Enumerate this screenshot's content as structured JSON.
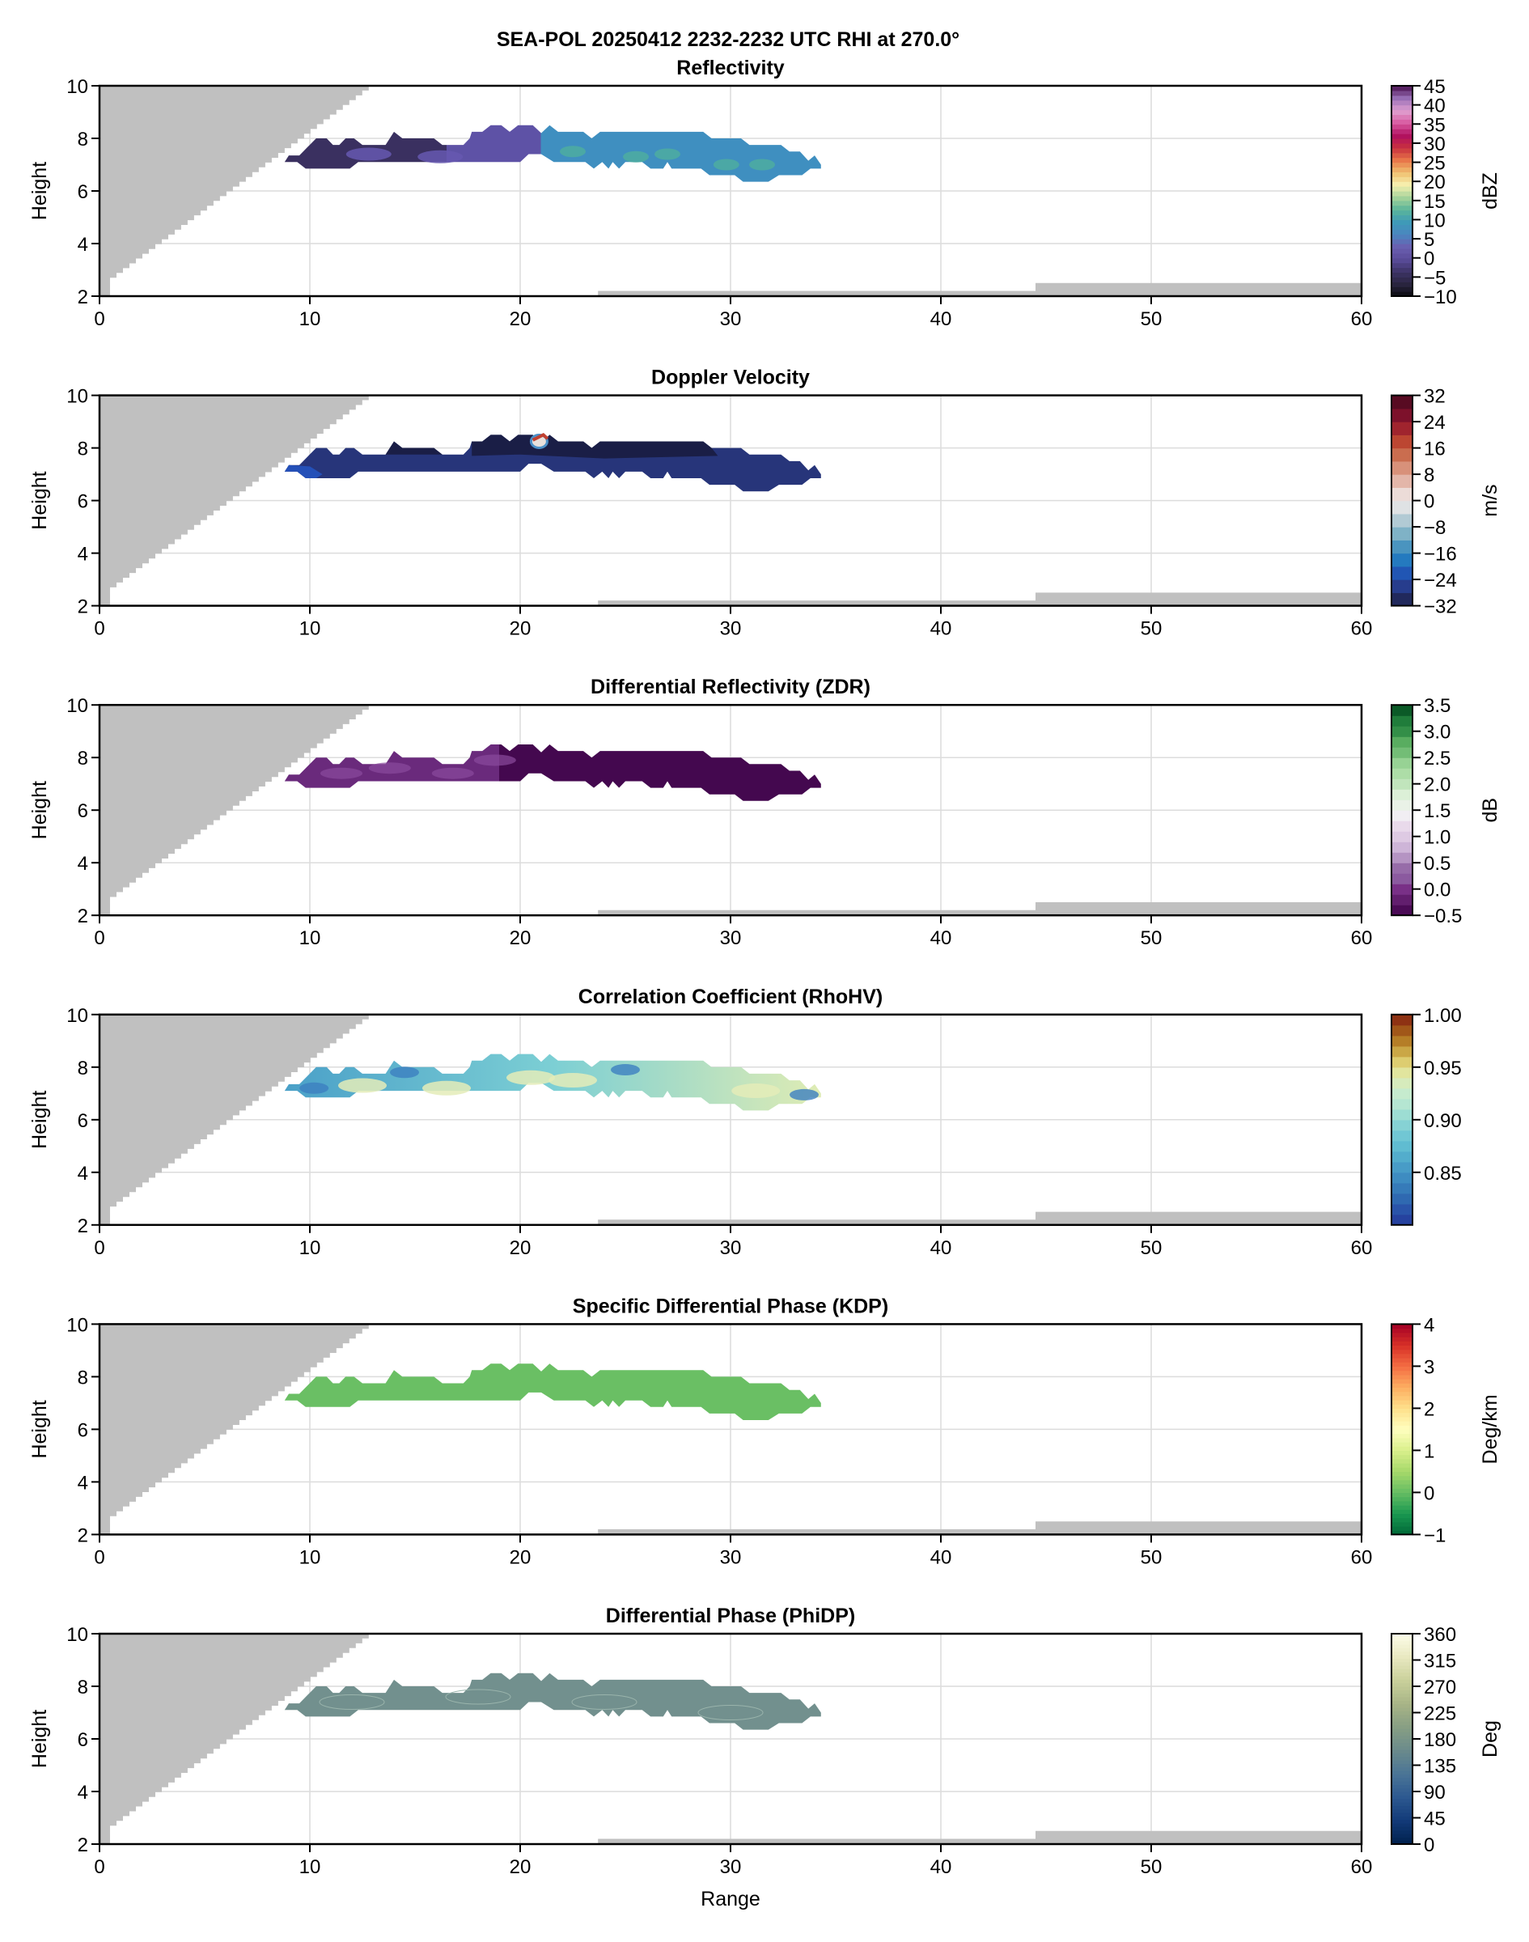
{
  "figure": {
    "suptitle": "SEA-POL 20250412 2232-2232 UTC RHI at 270.0°",
    "xlabel": "Range",
    "ylabel": "Height"
  },
  "chart_data": [
    {
      "type": "heatmap",
      "title": "Reflectivity",
      "xlabel": "",
      "ylabel": "Height",
      "xlim": [
        0,
        60
      ],
      "ylim": [
        2,
        10
      ],
      "xticks": [
        "0",
        "10",
        "20",
        "30",
        "40",
        "50",
        "60"
      ],
      "yticks": [
        "2",
        "4",
        "6",
        "8",
        "10"
      ],
      "grid": true,
      "colorbar": {
        "label": "dBZ",
        "range": [
          -10,
          45
        ],
        "ticks": [
          "45",
          "40",
          "35",
          "30",
          "25",
          "20",
          "15",
          "10",
          "5",
          "0",
          "−5",
          "−10"
        ],
        "tick_values": [
          45,
          40,
          35,
          30,
          25,
          20,
          15,
          10,
          5,
          0,
          -5,
          -10
        ],
        "colormap": [
          "#0b0b10",
          "#2a2540",
          "#3d3466",
          "#5a4c9a",
          "#6a5fb0",
          "#4a86c0",
          "#3f9ab8",
          "#5ab59a",
          "#a6d39a",
          "#f7f1b0",
          "#f0c070",
          "#e8784a",
          "#c8303e",
          "#b01060",
          "#d85aa0",
          "#e0a0d0",
          "#9a70b8",
          "#4a1050"
        ],
        "bands": 44
      },
      "field_description": "Values range roughly -8 to 10 dBZ: near -5 (dark purple) from 9–16 km, ~0–3 dBZ (violet) 16–21 km, ~5–10 dBZ (blue-teal) 21–34 km",
      "field_colors": [
        {
          "range": [
            8.8,
            16.5
          ],
          "color": "#3a3060"
        },
        {
          "range": [
            16.5,
            21.0
          ],
          "color": "#5e52a6"
        },
        {
          "range": [
            21.0,
            34.3
          ],
          "color": "#3f8fc0"
        }
      ]
    },
    {
      "type": "heatmap",
      "title": "Doppler Velocity",
      "xlabel": "",
      "ylabel": "Height",
      "xlim": [
        0,
        60
      ],
      "ylim": [
        2,
        10
      ],
      "xticks": [
        "0",
        "10",
        "20",
        "30",
        "40",
        "50",
        "60"
      ],
      "yticks": [
        "2",
        "4",
        "6",
        "8",
        "10"
      ],
      "grid": true,
      "colorbar": {
        "label": "m/s",
        "range": [
          -32,
          32
        ],
        "ticks": [
          "32",
          "24",
          "16",
          "8",
          "0",
          "−8",
          "−16",
          "−24",
          "−32"
        ],
        "tick_values": [
          32,
          24,
          16,
          8,
          0,
          -8,
          -16,
          -24,
          -32
        ],
        "colormap": [
          "#1a1d45",
          "#293677",
          "#2448ae",
          "#1a72c0",
          "#3e8dbd",
          "#76aec4",
          "#adc8d2",
          "#dfe2e4",
          "#ecdcd8",
          "#e2b2a4",
          "#d68b72",
          "#c76445",
          "#b73a2a",
          "#941830",
          "#6e0d28",
          "#440a1c"
        ],
        "bands": 16
      },
      "field_description": "Mostly -24 to -32 m/s: lower layer ~-26 m/s (#27357a), top layer above ~7.7 km ~-30 m/s (#1a1e46); folded/aliased patch near 21 km, 8.2 km shows positive values",
      "field_colors": [
        {
          "layer": "lower",
          "color": "#27357a"
        },
        {
          "layer": "upper",
          "color": "#1a1e46"
        },
        {
          "layer": "left-edge",
          "color": "#2450b8"
        }
      ]
    },
    {
      "type": "heatmap",
      "title": "Differential Reflectivity (ZDR)",
      "xlabel": "",
      "ylabel": "Height",
      "xlim": [
        0,
        60
      ],
      "ylim": [
        2,
        10
      ],
      "xticks": [
        "0",
        "10",
        "20",
        "30",
        "40",
        "50",
        "60"
      ],
      "yticks": [
        "2",
        "4",
        "6",
        "8",
        "10"
      ],
      "grid": true,
      "colorbar": {
        "label": "dB",
        "range": [
          -0.5,
          3.5
        ],
        "ticks": [
          "3.5",
          "3.0",
          "2.5",
          "2.0",
          "1.5",
          "1.0",
          "0.5",
          "0.0",
          "−0.5"
        ],
        "tick_values": [
          3.5,
          3.0,
          2.5,
          2.0,
          1.5,
          1.0,
          0.5,
          0.0,
          -0.5
        ],
        "colormap": [
          "#40004b",
          "#5a1a66",
          "#762a83",
          "#8c5ba0",
          "#9970ab",
          "#c2a5cf",
          "#d9c4e0",
          "#e7d4e8",
          "#f2eef4",
          "#e8f2e6",
          "#d9f0d3",
          "#b3dfae",
          "#a6dba0",
          "#78c07a",
          "#5aae61",
          "#2d8a44",
          "#1b7837",
          "#00441b"
        ],
        "bands": 20
      },
      "field_description": "Mostly -0.5 to 0.3 dB (dark purple), lighter purple pockets up to ~0.5 dB at 9–19 km",
      "field_colors": [
        {
          "range": [
            8.8,
            19.0
          ],
          "color": "#6a2a7c"
        },
        {
          "range": [
            19.0,
            34.3
          ],
          "color": "#44084f"
        }
      ]
    },
    {
      "type": "heatmap",
      "title": "Correlation Coefficient (RhoHV)",
      "xlabel": "",
      "ylabel": "Height",
      "xlim": [
        0,
        60
      ],
      "ylim": [
        2,
        10
      ],
      "xticks": [
        "0",
        "10",
        "20",
        "30",
        "40",
        "50",
        "60"
      ],
      "yticks": [
        "2",
        "4",
        "6",
        "8",
        "10"
      ],
      "grid": true,
      "colorbar": {
        "label": "",
        "range": [
          0.8,
          1.0
        ],
        "ticks": [
          "1.00",
          "0.95",
          "0.90",
          "0.85"
        ],
        "tick_values": [
          1.0,
          0.95,
          0.9,
          0.85
        ],
        "colormap": [
          "#24399a",
          "#2a52a8",
          "#3170b4",
          "#3c88c0",
          "#4aa0c8",
          "#5ab8d0",
          "#72c8d4",
          "#90d8d4",
          "#b4e6d2",
          "#cceccc",
          "#e2eaa8",
          "#dcc866",
          "#bc8c2c",
          "#a05418",
          "#842010"
        ],
        "bands": 20
      },
      "field_description": "Values ~0.85–0.96: mostly 0.88–0.92 (light blue), yellowish-cream ~0.95 near 12 km and 20–23 km",
      "field_colors": [
        {
          "value": 0.88,
          "color": "#4aa0c8"
        },
        {
          "value": 0.92,
          "color": "#7ccfd4"
        },
        {
          "value": 0.95,
          "color": "#dfecb4"
        }
      ]
    },
    {
      "type": "heatmap",
      "title": "Specific Differential Phase (KDP)",
      "xlabel": "",
      "ylabel": "Height",
      "xlim": [
        0,
        60
      ],
      "ylim": [
        2,
        10
      ],
      "xticks": [
        "0",
        "10",
        "20",
        "30",
        "40",
        "50",
        "60"
      ],
      "yticks": [
        "2",
        "4",
        "6",
        "8",
        "10"
      ],
      "grid": true,
      "colorbar": {
        "label": "Deg/km",
        "range": [
          -1,
          4
        ],
        "ticks": [
          "4",
          "3",
          "2",
          "1",
          "0",
          "−1"
        ],
        "tick_values": [
          4,
          3,
          2,
          1,
          0,
          -1
        ],
        "colormap": [
          "#006837",
          "#1a9850",
          "#66bd63",
          "#a6d96a",
          "#d9ef8b",
          "#ffffbf",
          "#fee08b",
          "#fdae61",
          "#f46d43",
          "#d73027",
          "#a50026"
        ],
        "bands": 50
      },
      "field_description": "Uniform ~0 Deg/km (medium green)",
      "field_colors": [
        {
          "value": 0.0,
          "color": "#6abf64"
        }
      ]
    },
    {
      "type": "heatmap",
      "title": "Differential Phase (PhiDP)",
      "xlabel": "Range",
      "ylabel": "Height",
      "xlim": [
        0,
        60
      ],
      "ylim": [
        2,
        10
      ],
      "xticks": [
        "0",
        "10",
        "20",
        "30",
        "40",
        "50",
        "60"
      ],
      "yticks": [
        "2",
        "4",
        "6",
        "8",
        "10"
      ],
      "grid": true,
      "colorbar": {
        "label": "Deg",
        "range": [
          0,
          360
        ],
        "ticks": [
          "360",
          "315",
          "270",
          "225",
          "180",
          "135",
          "90",
          "45",
          "0"
        ],
        "tick_values": [
          360,
          315,
          270,
          225,
          180,
          135,
          90,
          45,
          0
        ],
        "colormap": [
          "#00204c",
          "#123a78",
          "#2c5890",
          "#4a7496",
          "#6a8a8c",
          "#879e84",
          "#a7b486",
          "#c9d09a",
          "#e8e8c0",
          "#fdfde8"
        ],
        "bands": 60
      },
      "field_description": "Uniform ~190 Deg (gray-teal)",
      "field_colors": [
        {
          "value": 190,
          "color": "#72908e"
        }
      ]
    }
  ],
  "shared_geometry_data": {
    "echo_outline_km": [
      [
        8.8,
        7.1
      ],
      [
        9.0,
        7.35
      ],
      [
        9.5,
        7.35
      ],
      [
        10.3,
        8.0
      ],
      [
        10.8,
        8.0
      ],
      [
        11.1,
        7.75
      ],
      [
        11.4,
        7.75
      ],
      [
        11.7,
        8.0
      ],
      [
        12.1,
        8.0
      ],
      [
        12.5,
        7.75
      ],
      [
        13.6,
        7.75
      ],
      [
        14.0,
        8.25
      ],
      [
        14.4,
        8.0
      ],
      [
        15.9,
        8.0
      ],
      [
        16.3,
        7.75
      ],
      [
        17.3,
        7.75
      ],
      [
        17.6,
        8.0
      ],
      [
        17.7,
        8.25
      ],
      [
        18.2,
        8.25
      ],
      [
        18.6,
        8.5
      ],
      [
        19.1,
        8.5
      ],
      [
        19.5,
        8.25
      ],
      [
        19.9,
        8.5
      ],
      [
        20.6,
        8.5
      ],
      [
        21.0,
        8.2
      ],
      [
        21.4,
        8.5
      ],
      [
        21.8,
        8.25
      ],
      [
        23.0,
        8.25
      ],
      [
        23.4,
        8.0
      ],
      [
        23.8,
        8.25
      ],
      [
        28.7,
        8.25
      ],
      [
        29.1,
        8.0
      ],
      [
        30.5,
        8.0
      ],
      [
        30.9,
        7.75
      ],
      [
        32.4,
        7.75
      ],
      [
        32.8,
        7.5
      ],
      [
        33.3,
        7.5
      ],
      [
        33.7,
        7.15
      ],
      [
        34.0,
        7.35
      ],
      [
        34.3,
        7.0
      ],
      [
        34.3,
        6.85
      ],
      [
        33.8,
        6.85
      ],
      [
        33.4,
        6.6
      ],
      [
        32.3,
        6.6
      ],
      [
        31.8,
        6.35
      ],
      [
        30.6,
        6.35
      ],
      [
        30.2,
        6.6
      ],
      [
        29.0,
        6.6
      ],
      [
        28.6,
        6.85
      ],
      [
        27.2,
        6.85
      ],
      [
        27.0,
        7.1
      ],
      [
        26.8,
        6.85
      ],
      [
        26.2,
        6.85
      ],
      [
        25.8,
        7.1
      ],
      [
        25.0,
        7.1
      ],
      [
        24.7,
        6.85
      ],
      [
        24.4,
        7.1
      ],
      [
        24.2,
        6.85
      ],
      [
        23.9,
        7.1
      ],
      [
        23.5,
        6.85
      ],
      [
        23.1,
        7.1
      ],
      [
        21.6,
        7.1
      ],
      [
        21.0,
        7.4
      ],
      [
        20.4,
        7.4
      ],
      [
        20.0,
        7.1
      ],
      [
        12.3,
        7.1
      ],
      [
        11.9,
        6.85
      ],
      [
        9.8,
        6.85
      ],
      [
        9.4,
        7.1
      ]
    ],
    "beam_block_wedge_km": [
      [
        0,
        2
      ],
      [
        0,
        10
      ],
      [
        12.8,
        10
      ],
      [
        12.8,
        9.9
      ],
      [
        0.5,
        2.7
      ],
      [
        0.5,
        2
      ]
    ],
    "ground_clutter_km": [
      [
        23.7,
        2
      ],
      [
        23.7,
        2.2
      ],
      [
        44.5,
        2.2
      ],
      [
        44.5,
        2.5
      ],
      [
        60,
        2.5
      ],
      [
        60,
        2
      ]
    ]
  },
  "colors": {
    "mask_gray": "#c0c0c0",
    "grid": "#dcdcdc",
    "axis": "#000000"
  }
}
